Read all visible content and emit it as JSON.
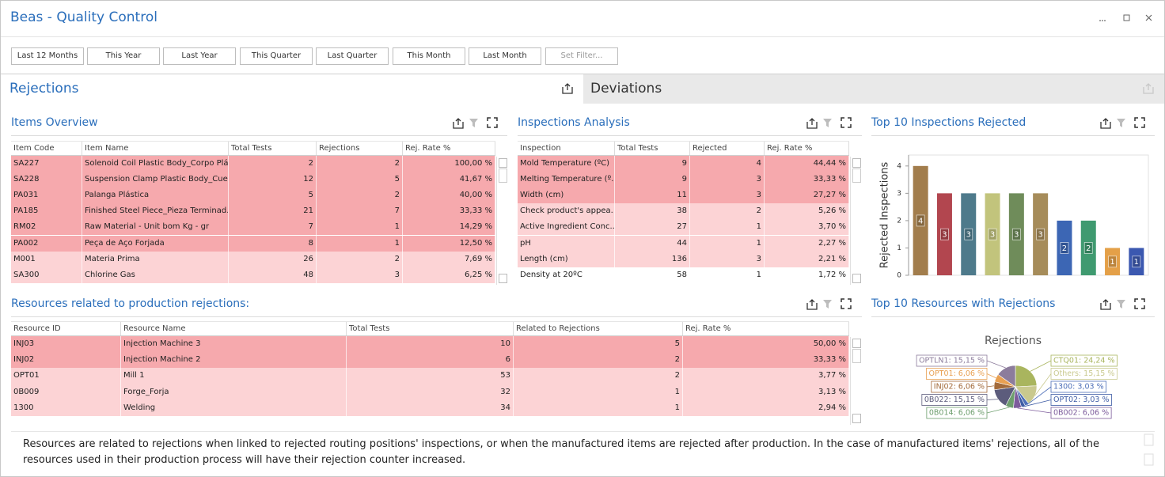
{
  "header": {
    "title": "Beas - Quality Control"
  },
  "filters": [
    "Last 12 Months",
    "This Year",
    "Last Year",
    "This Quarter",
    "Last Quarter",
    "This Month",
    "Last Month",
    "Set Filter..."
  ],
  "tabs": [
    "Rejections",
    "Deviations"
  ],
  "items_overview": {
    "title": "Items Overview",
    "columns": [
      "Item Code",
      "Item Name",
      "Total Tests",
      "Rejections",
      "Rej. Rate %"
    ],
    "rows": [
      [
        "SA227",
        "Solenoid Coil Plastic Body_Corpo Plá...",
        2,
        2,
        "100,00 %"
      ],
      [
        "SA228",
        "Suspension Clamp Plastic Body_Cue...",
        12,
        5,
        "41,67 %"
      ],
      [
        "PA031",
        "Palanga Plástica",
        5,
        2,
        "40,00 %"
      ],
      [
        "PA185",
        "Finished Steel Piece_Pieza Terminad...",
        21,
        7,
        "33,33 %"
      ],
      [
        "RM02",
        "Raw Material - Unit bom Kg - gr",
        7,
        1,
        "14,29 %"
      ],
      [
        "PA002",
        "Peça de Aço Forjada",
        8,
        1,
        "12,50 %"
      ],
      [
        "M001",
        "Materia Prima",
        26,
        2,
        "7,69 %"
      ],
      [
        "SA300",
        "Chlorine Gas",
        48,
        3,
        "6,25 %"
      ]
    ],
    "row_colors": [
      "#f6a9ad",
      "#f6a9ad",
      "#f6a9ad",
      "#f6a9ad",
      "#f6a9ad",
      "#f6a9ad",
      "#fcd3d5",
      "#fcd3d5"
    ]
  },
  "inspections_analysis": {
    "title": "Inspections Analysis",
    "columns": [
      "Inspection",
      "Total Tests",
      "Rejected",
      "Rej. Rate %"
    ],
    "rows": [
      [
        "Mold Temperature (ºC)",
        9,
        4,
        "44,44 %"
      ],
      [
        "Melting Temperature (º...",
        9,
        3,
        "33,33 %"
      ],
      [
        "Width (cm)",
        11,
        3,
        "27,27 %"
      ],
      [
        "Check product's appea...",
        38,
        2,
        "5,26 %"
      ],
      [
        "Active Ingredient Conc...",
        27,
        1,
        "3,70 %"
      ],
      [
        "pH",
        44,
        1,
        "2,27 %"
      ],
      [
        "Length (cm)",
        136,
        3,
        "2,21 %"
      ],
      [
        "Density at 20ºC",
        58,
        1,
        "1,72 %"
      ]
    ],
    "row_colors": [
      "#f6a9ad",
      "#f6a9ad",
      "#f6a9ad",
      "#fcd3d5",
      "#fcd3d5",
      "#fcd3d5",
      "#fcd3d5",
      "#ffffff"
    ]
  },
  "resources": {
    "title": "Resources related to production rejections:",
    "columns": [
      "Resource ID",
      "Resource Name",
      "Total Tests",
      "Related to Rejections",
      "Rej. Rate %"
    ],
    "rows": [
      [
        "INJ03",
        "Injection Machine 3",
        10,
        5,
        "50,00 %"
      ],
      [
        "INJ02",
        "Injection Machine 2",
        6,
        2,
        "33,33 %"
      ],
      [
        "OPT01",
        "Mill 1",
        53,
        2,
        "3,77 %"
      ],
      [
        "0B009",
        "Forge_Forja",
        32,
        1,
        "3,13 %"
      ],
      [
        "1300",
        "Welding",
        34,
        1,
        "2,94 %"
      ]
    ],
    "row_colors": [
      "#f6a9ad",
      "#f6a9ad",
      "#fcd3d5",
      "#fcd3d5",
      "#fcd3d5"
    ]
  },
  "note": "Resources are related to rejections when linked to rejected routing positions' inspections, or when the manufactured items are rejected after production. In the case of manufactured items' rejections, all of the resources used in their production process will have their rejection counter increased.",
  "chart_data": [
    {
      "type": "bar",
      "title": "Top 10 Inspections Rejected",
      "y_label": "Rejected Inspections",
      "categories": [
        null,
        null,
        null,
        null,
        null,
        null,
        null,
        null,
        null,
        null
      ],
      "values": [
        4,
        3,
        3,
        3,
        3,
        3,
        2,
        2,
        1,
        1
      ],
      "colors": [
        "#a27d4c",
        "#b2464f",
        "#4e7a8b",
        "#c2c47c",
        "#6f8c5a",
        "#a68c5a",
        "#3c66b4",
        "#3f9a70",
        "#e4a048",
        "#3b58b0"
      ],
      "ylim": [
        0,
        4.4
      ],
      "yticks": [
        0,
        1,
        2,
        3,
        4
      ],
      "data_labels": true
    },
    {
      "type": "pie",
      "title": "Top 10 Resources with Rejections",
      "subtitle": "Rejections",
      "values": [
        24.24,
        15.15,
        3.03,
        3.03,
        6.06,
        6.06,
        15.15,
        6.06,
        6.06,
        15.15
      ],
      "value_labels": [
        "CTQ01: 24,24 %",
        "Others: 15,15 %",
        "1300: 3,03 %",
        "OPT02: 3,03 %",
        "0B002: 6,06 %",
        "0B014: 6,06 %",
        "0B022: 15,15 %",
        "INJ02: 6,06 %",
        "OPT01: 6,06 %",
        "OPTLN1: 15,15 %"
      ],
      "colors": [
        "#a9b55e",
        "#c9c98e",
        "#4d6fb8",
        "#3e5ca5",
        "#7d5c9c",
        "#6d9e6d",
        "#5c5c7c",
        "#a26a3a",
        "#e8a052",
        "#8c7c9c"
      ]
    }
  ]
}
